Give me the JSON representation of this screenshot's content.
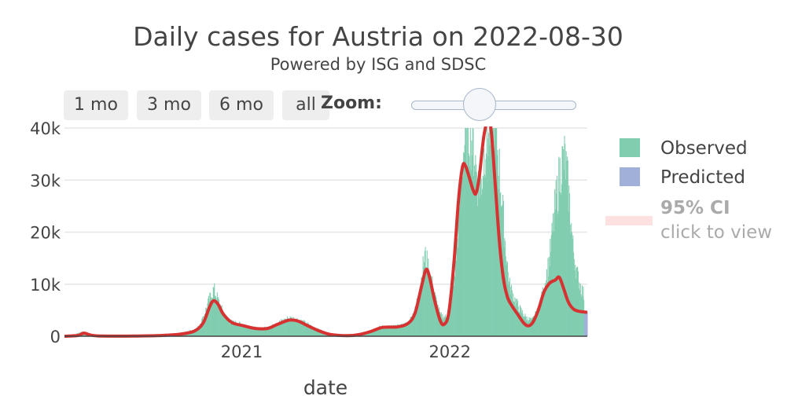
{
  "chart_data": {
    "type": "bar",
    "title": "Daily cases for Austria on 2022-08-30",
    "subtitle": "Powered by ISG and SDSC",
    "xlabel": "date",
    "ylabel": "",
    "x_range": [
      "2020-02-25",
      "2022-08-30"
    ],
    "ylim": [
      0,
      40000
    ],
    "y_ticks": [
      0,
      10000,
      20000,
      30000,
      40000
    ],
    "y_tick_labels": [
      "0",
      "10k",
      "20k",
      "30k",
      "40k"
    ],
    "x_ticks": [
      "2021-01-01",
      "2022-01-01"
    ],
    "x_tick_labels": [
      "2021",
      "2022"
    ],
    "grid": true,
    "legend_position": "right",
    "colors": {
      "observed": "#80cdb0",
      "predicted": "#a0b0d8",
      "ci": "#fde0e0",
      "trend": "#d63232"
    },
    "observed_anchors": [
      [
        "2020-02-25",
        0
      ],
      [
        "2020-03-10",
        150
      ],
      [
        "2020-03-26",
        800
      ],
      [
        "2020-04-08",
        350
      ],
      [
        "2020-05-01",
        60
      ],
      [
        "2020-07-01",
        100
      ],
      [
        "2020-08-01",
        150
      ],
      [
        "2020-09-01",
        300
      ],
      [
        "2020-09-25",
        800
      ],
      [
        "2020-10-15",
        1500
      ],
      [
        "2020-10-25",
        3500
      ],
      [
        "2020-11-05",
        7000
      ],
      [
        "2020-11-13",
        9000
      ],
      [
        "2020-11-22",
        6500
      ],
      [
        "2020-12-01",
        4000
      ],
      [
        "2020-12-10",
        2800
      ],
      [
        "2020-12-25",
        2500
      ],
      [
        "2021-01-10",
        2000
      ],
      [
        "2021-02-01",
        1400
      ],
      [
        "2021-02-20",
        1800
      ],
      [
        "2021-03-10",
        2800
      ],
      [
        "2021-03-25",
        3500
      ],
      [
        "2021-04-10",
        3200
      ],
      [
        "2021-04-25",
        2400
      ],
      [
        "2021-05-10",
        1500
      ],
      [
        "2021-06-01",
        600
      ],
      [
        "2021-07-01",
        150
      ],
      [
        "2021-07-20",
        300
      ],
      [
        "2021-08-10",
        900
      ],
      [
        "2021-09-01",
        1800
      ],
      [
        "2021-10-01",
        1900
      ],
      [
        "2021-10-20",
        2500
      ],
      [
        "2021-11-01",
        5000
      ],
      [
        "2021-11-12",
        11000
      ],
      [
        "2021-11-18",
        15500
      ],
      [
        "2021-11-25",
        13000
      ],
      [
        "2021-12-05",
        8000
      ],
      [
        "2021-12-15",
        4000
      ],
      [
        "2021-12-28",
        3500
      ],
      [
        "2022-01-08",
        10000
      ],
      [
        "2022-01-15",
        20000
      ],
      [
        "2022-01-22",
        33000
      ],
      [
        "2022-01-28",
        38000
      ],
      [
        "2022-02-04",
        40000
      ],
      [
        "2022-02-12",
        36000
      ],
      [
        "2022-02-20",
        29000
      ],
      [
        "2022-02-26",
        30000
      ],
      [
        "2022-03-05",
        38000
      ],
      [
        "2022-03-12",
        40000
      ],
      [
        "2022-03-18",
        42000
      ],
      [
        "2022-03-24",
        38000
      ],
      [
        "2022-04-01",
        28000
      ],
      [
        "2022-04-08",
        18000
      ],
      [
        "2022-04-15",
        10000
      ],
      [
        "2022-04-25",
        7000
      ],
      [
        "2022-05-05",
        5000
      ],
      [
        "2022-05-15",
        3500
      ],
      [
        "2022-05-25",
        3000
      ],
      [
        "2022-06-05",
        5000
      ],
      [
        "2022-06-15",
        9000
      ],
      [
        "2022-06-25",
        15000
      ],
      [
        "2022-07-05",
        25000
      ],
      [
        "2022-07-15",
        33000
      ],
      [
        "2022-07-22",
        34000
      ],
      [
        "2022-07-28",
        28000
      ],
      [
        "2022-08-05",
        17000
      ],
      [
        "2022-08-12",
        12000
      ],
      [
        "2022-08-20",
        9000
      ],
      [
        "2022-08-24",
        8000
      ]
    ],
    "predicted_from": "2022-08-25",
    "predicted_value": 4800,
    "trend_points": [
      [
        "2020-02-25",
        0
      ],
      [
        "2020-03-20",
        150
      ],
      [
        "2020-03-30",
        600
      ],
      [
        "2020-04-12",
        200
      ],
      [
        "2020-05-01",
        30
      ],
      [
        "2020-07-01",
        50
      ],
      [
        "2020-08-15",
        150
      ],
      [
        "2020-09-15",
        400
      ],
      [
        "2020-10-10",
        1000
      ],
      [
        "2020-10-25",
        2500
      ],
      [
        "2020-11-05",
        5500
      ],
      [
        "2020-11-12",
        6800
      ],
      [
        "2020-11-20",
        6200
      ],
      [
        "2020-11-30",
        4200
      ],
      [
        "2020-12-15",
        2600
      ],
      [
        "2021-01-05",
        2000
      ],
      [
        "2021-01-25",
        1500
      ],
      [
        "2021-02-15",
        1500
      ],
      [
        "2021-03-05",
        2300
      ],
      [
        "2021-03-25",
        3100
      ],
      [
        "2021-04-10",
        2900
      ],
      [
        "2021-04-25",
        2100
      ],
      [
        "2021-05-15",
        1100
      ],
      [
        "2021-06-05",
        350
      ],
      [
        "2021-07-05",
        100
      ],
      [
        "2021-07-25",
        300
      ],
      [
        "2021-08-15",
        900
      ],
      [
        "2021-09-05",
        1700
      ],
      [
        "2021-10-01",
        1800
      ],
      [
        "2021-10-20",
        2500
      ],
      [
        "2021-11-01",
        4500
      ],
      [
        "2021-11-12",
        9500
      ],
      [
        "2021-11-20",
        12800
      ],
      [
        "2021-11-26",
        11500
      ],
      [
        "2021-12-05",
        7000
      ],
      [
        "2021-12-15",
        3000
      ],
      [
        "2021-12-22",
        2300
      ],
      [
        "2021-12-30",
        4500
      ],
      [
        "2022-01-08",
        14000
      ],
      [
        "2022-01-16",
        26000
      ],
      [
        "2022-01-23",
        32500
      ],
      [
        "2022-01-28",
        32800
      ],
      [
        "2022-02-04",
        30500
      ],
      [
        "2022-02-11",
        28000
      ],
      [
        "2022-02-16",
        27500
      ],
      [
        "2022-02-22",
        31000
      ],
      [
        "2022-03-01",
        38000
      ],
      [
        "2022-03-07",
        41000
      ],
      [
        "2022-03-14",
        40000
      ],
      [
        "2022-03-21",
        30000
      ],
      [
        "2022-03-29",
        18000
      ],
      [
        "2022-04-05",
        11000
      ],
      [
        "2022-04-12",
        7500
      ],
      [
        "2022-04-20",
        5800
      ],
      [
        "2022-04-30",
        4200
      ],
      [
        "2022-05-10",
        2600
      ],
      [
        "2022-05-18",
        2000
      ],
      [
        "2022-05-26",
        2600
      ],
      [
        "2022-06-05",
        5000
      ],
      [
        "2022-06-15",
        8500
      ],
      [
        "2022-06-25",
        10200
      ],
      [
        "2022-07-05",
        10800
      ],
      [
        "2022-07-12",
        11300
      ],
      [
        "2022-07-20",
        9000
      ],
      [
        "2022-07-28",
        6500
      ],
      [
        "2022-08-06",
        5200
      ],
      [
        "2022-08-15",
        4800
      ],
      [
        "2022-08-30",
        4600
      ]
    ],
    "legend": {
      "observed": "Observed",
      "predicted": "Predicted",
      "ci_title": "95% CI",
      "ci_hint": "click to view"
    }
  },
  "controls": {
    "buttons": [
      "1 mo",
      "3 mo",
      "6 mo",
      "all"
    ],
    "zoom_label": "Zoom:"
  }
}
